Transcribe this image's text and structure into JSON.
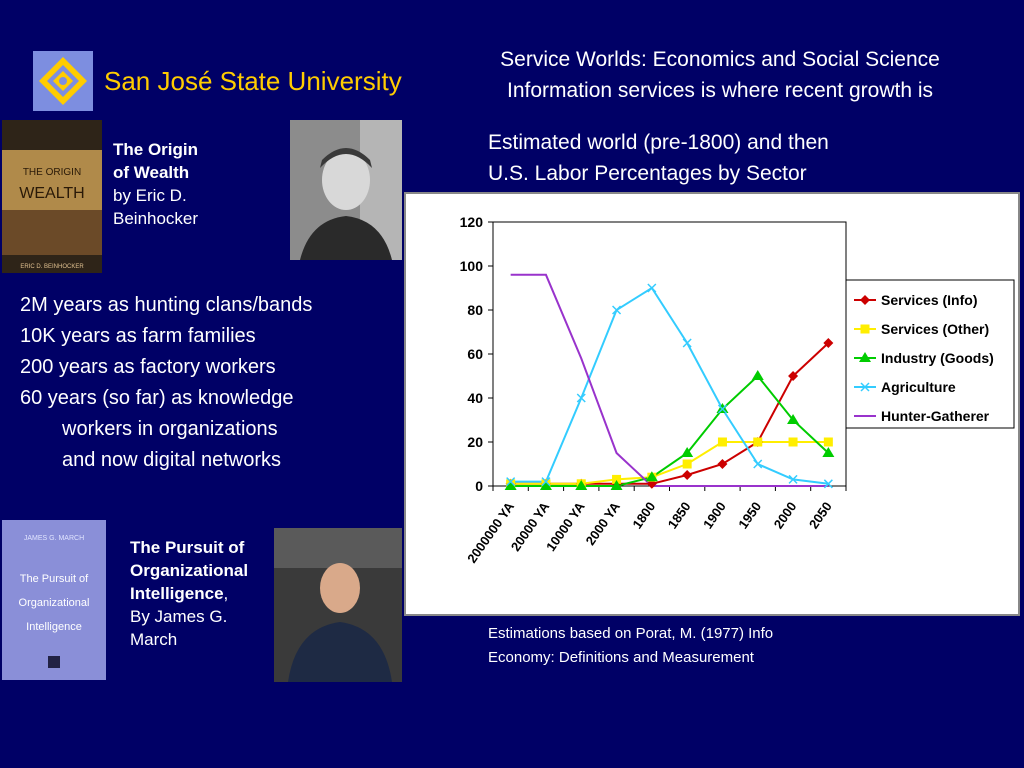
{
  "university": "San José State University",
  "header": {
    "title_line1": "Service Worlds: Economics and Social Science",
    "title_line2": "Information services is where recent growth is",
    "subtitle_line1": "Estimated world (pre-1800) and then",
    "subtitle_line2": "U.S. Labor Percentages by Sector"
  },
  "book1": {
    "title1": "The Origin",
    "title2": "of Wealth",
    "by": "by Eric D.",
    "author": "Beinhocker",
    "cover_title": "THE ORIGIN OF WEALTH",
    "cover_author": "ERIC D. BEINHOCKER"
  },
  "bullets": {
    "l1": "2M years as hunting clans/bands",
    "l2": "10K years as farm families",
    "l3": "200 years as factory workers",
    "l4": "60 years (so far) as knowledge",
    "l5": "workers in organizations",
    "l6": "and now digital networks"
  },
  "book2": {
    "title1": "The Pursuit of",
    "title2": "Organizational",
    "title3": "Intelligence",
    "title3_suffix": ",",
    "by": "By James G.",
    "author": "March",
    "cover_author": "JAMES G. MARCH",
    "cover_title": "The Pursuit of Organizational Intelligence"
  },
  "caption": {
    "line1": "Estimations based on Porat, M. (1977) Info",
    "line2": "Economy: Definitions and Measurement"
  },
  "chart_data": {
    "type": "line",
    "categories": [
      "2000000 YA",
      "20000 YA",
      "10000 YA",
      "2000 YA",
      "1800",
      "1850",
      "1900",
      "1950",
      "2000",
      "2050"
    ],
    "ylim": [
      0,
      120
    ],
    "yticks": [
      0,
      20,
      40,
      60,
      80,
      100,
      120
    ],
    "grid": false,
    "legend_position": "right",
    "series": [
      {
        "name": "Services (Info)",
        "color": "#cc0000",
        "marker": "diamond",
        "values": [
          1,
          1,
          1,
          1,
          1,
          5,
          10,
          20,
          50,
          65
        ]
      },
      {
        "name": "Services (Other)",
        "color": "#ffee00",
        "marker": "square",
        "values": [
          1,
          1,
          1,
          3,
          4,
          10,
          20,
          20,
          20,
          20
        ]
      },
      {
        "name": "Industry (Goods)",
        "color": "#00cc00",
        "marker": "triangle",
        "values": [
          0,
          0,
          0,
          0,
          4,
          15,
          35,
          50,
          30,
          15
        ]
      },
      {
        "name": "Agriculture",
        "color": "#33ccff",
        "marker": "x",
        "values": [
          2,
          2,
          40,
          80,
          90,
          65,
          35,
          10,
          3,
          1
        ]
      },
      {
        "name": "Hunter-Gatherer",
        "color": "#9933cc",
        "marker": "none",
        "values": [
          96,
          96,
          58,
          15,
          0,
          0,
          0,
          0,
          0,
          0
        ]
      }
    ]
  }
}
